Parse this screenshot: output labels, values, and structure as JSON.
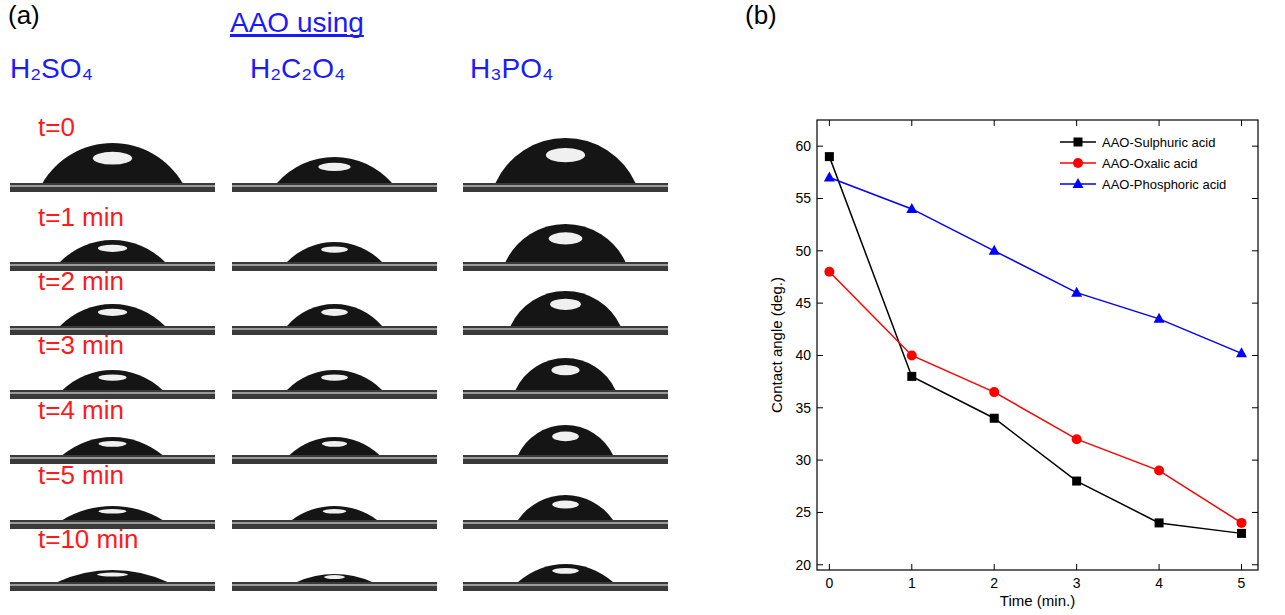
{
  "panels": {
    "a": {
      "label": "(a)",
      "heading": "AAO using",
      "columns": [
        "H₂SO₄",
        "H₂C₂O₄",
        "H₃PO₄"
      ],
      "times": [
        "t=0",
        "t=1 min",
        "t=2 min",
        "t=3 min",
        "t=4 min",
        "t=5 min",
        "t=10 min"
      ]
    },
    "b": {
      "label": "(b)"
    }
  },
  "chart_data": {
    "type": "line",
    "x_label": "Time (min.)",
    "y_label": "Contact angle (deg.)",
    "x": [
      0,
      1,
      2,
      3,
      4,
      5
    ],
    "series": [
      {
        "name": "AAO-Sulphuric acid",
        "color": "#000000",
        "marker": "square",
        "values": [
          59,
          38,
          34,
          28,
          24,
          23
        ]
      },
      {
        "name": "AAO-Oxalic acid",
        "color": "#ff0000",
        "marker": "circle",
        "values": [
          48,
          40,
          36.5,
          32,
          29,
          24
        ]
      },
      {
        "name": "AAO-Phosphoric acid",
        "color": "#0000ff",
        "marker": "triangle",
        "values": [
          57,
          54,
          50,
          46,
          43.5,
          40.2
        ]
      }
    ],
    "xlim": [
      -0.15,
      5.2
    ],
    "ylim": [
      19.5,
      62.5
    ],
    "xticks": [
      0,
      1,
      2,
      3,
      4,
      5
    ],
    "yticks": [
      20,
      25,
      30,
      35,
      40,
      45,
      50,
      55,
      60
    ],
    "legend": "upper right",
    "grid": false
  }
}
